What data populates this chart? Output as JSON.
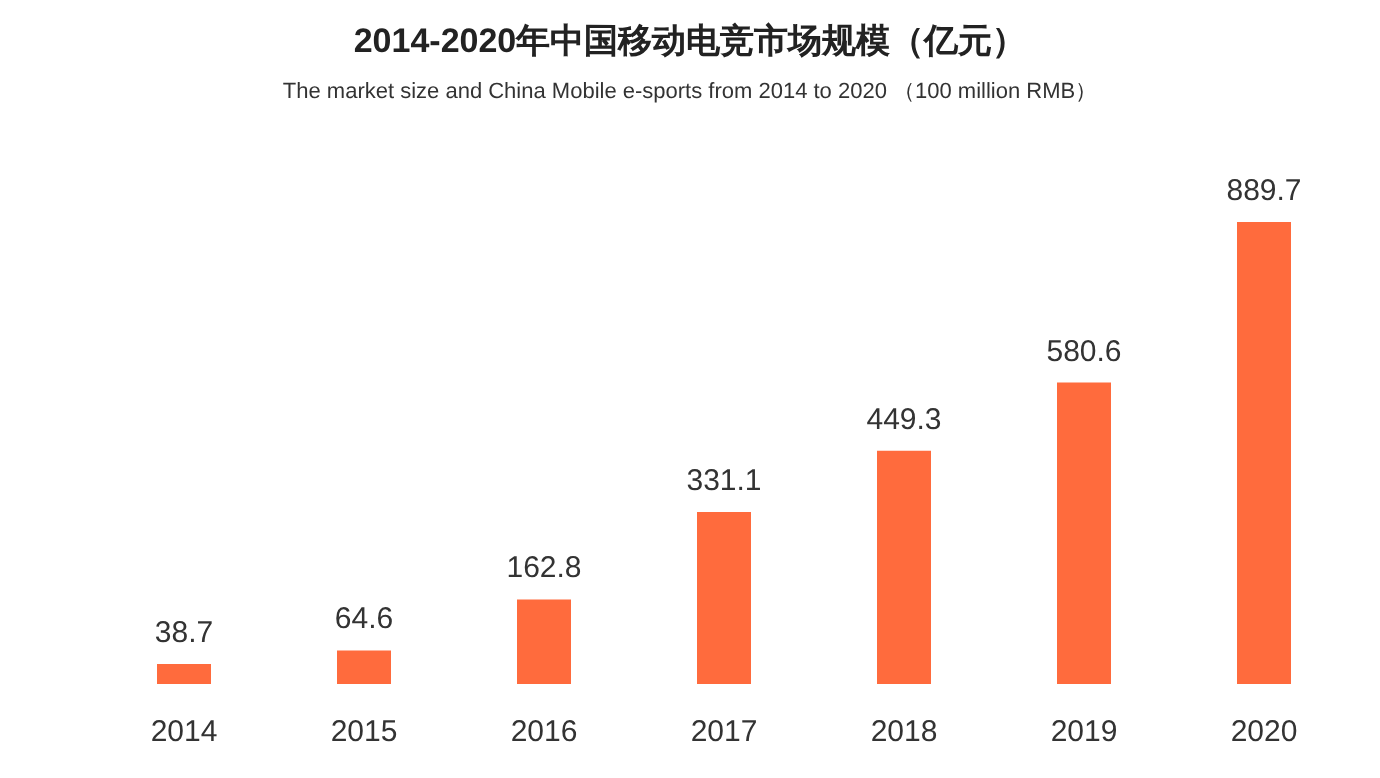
{
  "chart_data": {
    "type": "bar",
    "title": "2014-2020年中国移动电竞市场规模（亿元）",
    "subtitle": "The market size and China Mobile e-sports from 2014 to 2020 （100 million RMB）",
    "categories": [
      "2014",
      "2015",
      "2016",
      "2017",
      "2018",
      "2019",
      "2020"
    ],
    "values": [
      38.7,
      64.6,
      162.8,
      331.1,
      449.3,
      580.6,
      889.7
    ],
    "color": "#ff6b3d",
    "data_labels": true,
    "tick_labels": "x"
  }
}
